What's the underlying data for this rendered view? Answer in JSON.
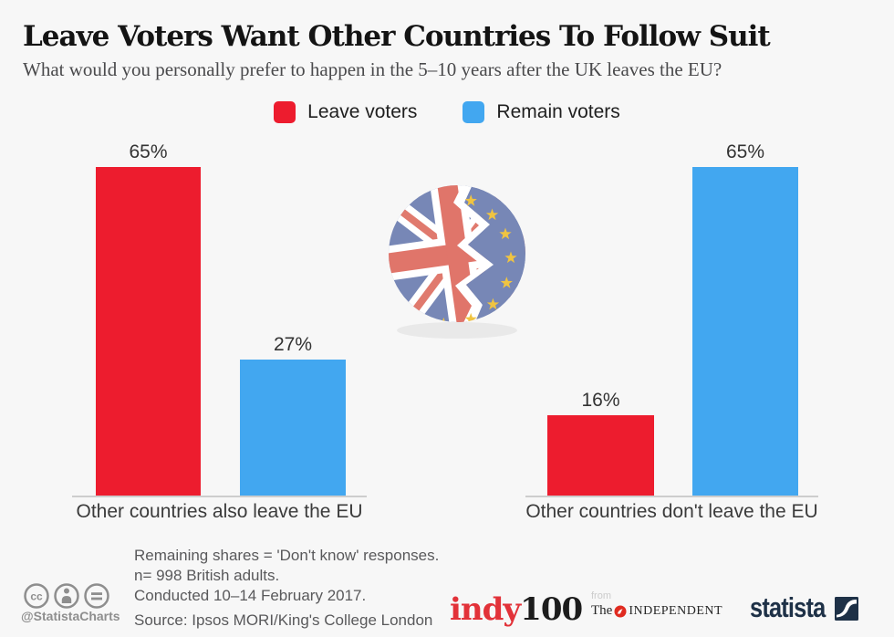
{
  "header": {
    "title": "Leave Voters Want Other Countries To Follow Suit",
    "subtitle": "What would you personally prefer to happen in the 5–10 years after the UK leaves the EU?"
  },
  "legend": {
    "items": [
      {
        "label": "Leave voters",
        "color": "#ed1c2e"
      },
      {
        "label": "Remain voters",
        "color": "#42a7f0"
      }
    ]
  },
  "chart_data": {
    "type": "bar",
    "categories": [
      "Other countries also leave the EU",
      "Other countries don't leave the EU"
    ],
    "series": [
      {
        "name": "Leave voters",
        "color": "#ed1c2e",
        "values": [
          65,
          16
        ]
      },
      {
        "name": "Remain voters",
        "color": "#42a7f0",
        "values": [
          27,
          65
        ]
      }
    ],
    "value_labels": [
      [
        "65%",
        "27%"
      ],
      [
        "16%",
        "65%"
      ]
    ],
    "ylim": [
      0,
      100
    ],
    "grid": false,
    "legend_position": "top",
    "unit": "%"
  },
  "illustration": {
    "description": "broken-circle-uk-eu-flags",
    "uk_blue": "#7787b6",
    "uk_red": "#e07a6e",
    "eu_blue": "#7787b6",
    "star_gold": "#f0c441"
  },
  "footer": {
    "license_handle": "@StatistaCharts",
    "notes": [
      "Remaining shares = 'Don't know' responses.",
      "n= 998 British adults.",
      "Conducted 10–14 February 2017."
    ],
    "source": "Source: Ipsos MORI/King's College London",
    "brands": {
      "indy_part1": "indy",
      "indy_part2": "100",
      "from_label": "from",
      "independent_the": "The",
      "independent_name": "INDEPENDENT",
      "statista": "statista"
    }
  }
}
